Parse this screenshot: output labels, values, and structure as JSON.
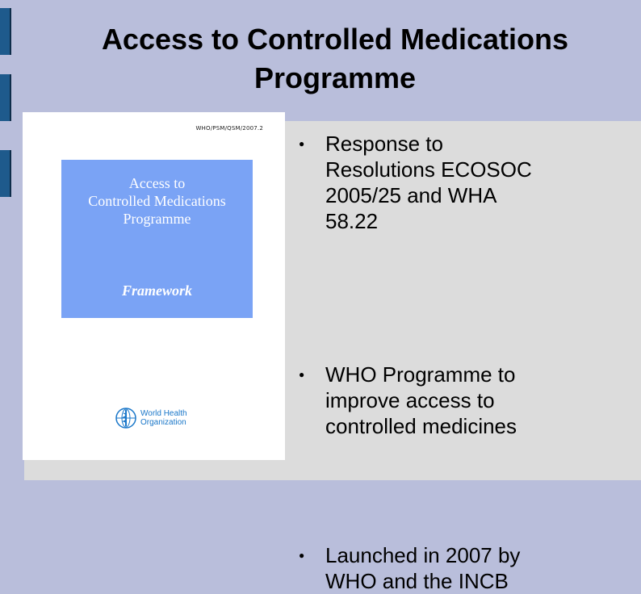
{
  "slide": {
    "title_line1": "Access to Controlled Medications",
    "title_line2": "Programme",
    "document": {
      "code": "WHO/PSM/QSM/2007.2",
      "box_title_line1": "Access to",
      "box_title_line2": "Controlled Medications",
      "box_title_line3": "Programme",
      "box_subtitle": "Framework",
      "org_line1": "World Health",
      "org_line2": "Organization",
      "logo_icon": "who-emblem-icon"
    },
    "bullets": [
      {
        "line1": "Response to",
        "line2": "Resolutions ECOSOC",
        "line3": "2005/25 and WHA",
        "line4": "58.22"
      },
      {
        "line1": "WHO Programme to",
        "line2": "improve access to",
        "line3": "controlled medicines"
      },
      {
        "line1": "Launched in 2007 by",
        "line2": "WHO and the INCB"
      }
    ],
    "bullet_glyph": "●"
  },
  "colors": {
    "background": "#b9bedb",
    "panel": "#dcdcdc",
    "side_marks": "#1e5a8c",
    "cover_box": "#7aa3f5",
    "who_blue": "#1a77c9"
  }
}
